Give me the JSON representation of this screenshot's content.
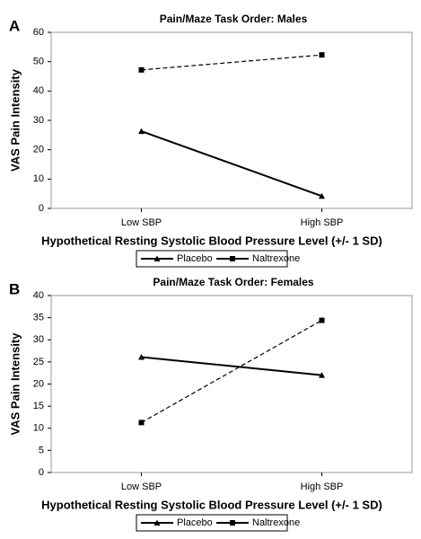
{
  "chart_data": [
    {
      "type": "line",
      "panel": "A",
      "title": "Pain/Maze Task Order: Males",
      "x_label": "Hypothetical Resting Systolic Blood Pressure Level (+/- 1 SD)",
      "y_label": "VAS Pain Intensity",
      "categories": [
        "Low SBP",
        "High SBP"
      ],
      "series": [
        {
          "name": "Placebo",
          "color": "#000000",
          "line_style": "solid",
          "marker": "triangle",
          "values": [
            26.3,
            4.2
          ]
        },
        {
          "name": "Naltrexone",
          "color": "#000000",
          "line_style": "dashed",
          "marker": "square",
          "values": [
            47.2,
            52.3
          ]
        }
      ],
      "ylim": [
        0,
        60
      ],
      "yticks": [
        0,
        10,
        20,
        30,
        40,
        50,
        60
      ],
      "grid": false,
      "legend": "bottom"
    },
    {
      "type": "line",
      "panel": "B",
      "title": "Pain/Maze Task Order: Females",
      "x_label": "Hypothetical Resting Systolic Blood Pressure Level (+/- 1 SD)",
      "y_label": "VAS Pain Intensity",
      "categories": [
        "Low SBP",
        "High SBP"
      ],
      "series": [
        {
          "name": "Placebo",
          "color": "#000000",
          "line_style": "solid",
          "marker": "triangle",
          "values": [
            26.1,
            22.0
          ]
        },
        {
          "name": "Naltrexone",
          "color": "#000000",
          "line_style": "dashed",
          "marker": "square",
          "values": [
            11.3,
            34.4
          ]
        }
      ],
      "ylim": [
        0,
        40
      ],
      "yticks": [
        0,
        5,
        10,
        15,
        20,
        25,
        30,
        35,
        40
      ],
      "grid": false,
      "legend": "bottom"
    }
  ]
}
